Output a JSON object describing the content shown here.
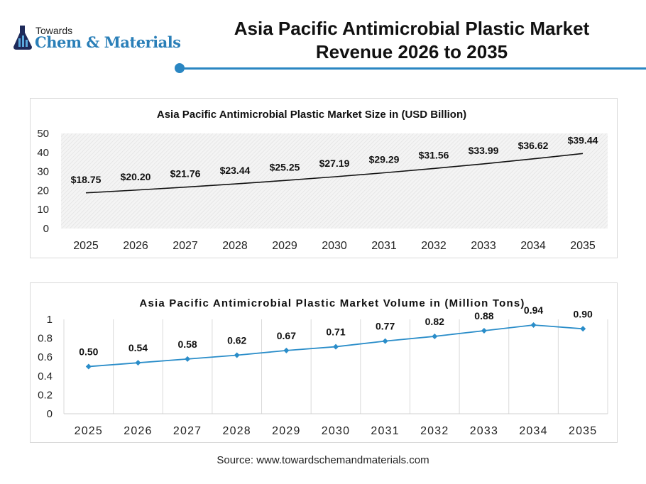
{
  "header": {
    "logo": {
      "line1": "Towards",
      "line2": "Chem & Materials"
    },
    "title_line1": "Asia Pacific Antimicrobial Plastic Market",
    "title_line2": "Revenue 2026 to 2035",
    "accent_color": "#2a86c2"
  },
  "chart_data": [
    {
      "type": "line",
      "title": "Asia Pacific Antimicrobial Plastic Market Size in (USD Billion)",
      "categories": [
        "2025",
        "2026",
        "2027",
        "2028",
        "2029",
        "2030",
        "2031",
        "2032",
        "2033",
        "2034",
        "2035"
      ],
      "values": [
        18.75,
        20.2,
        21.76,
        23.44,
        25.25,
        27.19,
        29.29,
        31.56,
        33.99,
        36.62,
        39.44
      ],
      "data_labels": [
        "$18.75",
        "$20.20",
        "$21.76",
        "$23.44",
        "$25.25",
        "$27.19",
        "$29.29",
        "$31.56",
        "$33.99",
        "$36.62",
        "$39.44"
      ],
      "ylim": [
        0,
        50
      ],
      "yticks": [
        "0",
        "10",
        "20",
        "30",
        "40",
        "50"
      ],
      "line_color": "#111111",
      "background": "hatched light gray",
      "grid": false
    },
    {
      "type": "line",
      "title": "Asia Pacific Antimicrobial Plastic Market Volume in (Million Tons)",
      "categories": [
        "2025",
        "2026",
        "2027",
        "2028",
        "2029",
        "2030",
        "2031",
        "2032",
        "2033",
        "2034",
        "2035"
      ],
      "values": [
        0.5,
        0.54,
        0.58,
        0.62,
        0.67,
        0.71,
        0.77,
        0.82,
        0.88,
        0.94,
        0.9
      ],
      "data_labels": [
        "0.50",
        "0.54",
        "0.58",
        "0.62",
        "0.67",
        "0.71",
        "0.77",
        "0.82",
        "0.88",
        "0.94",
        "0.90"
      ],
      "ylim": [
        0,
        1
      ],
      "yticks": [
        "0",
        "0.2",
        "0.4",
        "0.6",
        "0.8",
        "1"
      ],
      "line_color": "#2a8dc9",
      "marker": "diamond",
      "grid": "vertical"
    }
  ],
  "footer": {
    "source": "Source: www.towardschemandmaterials.com"
  }
}
